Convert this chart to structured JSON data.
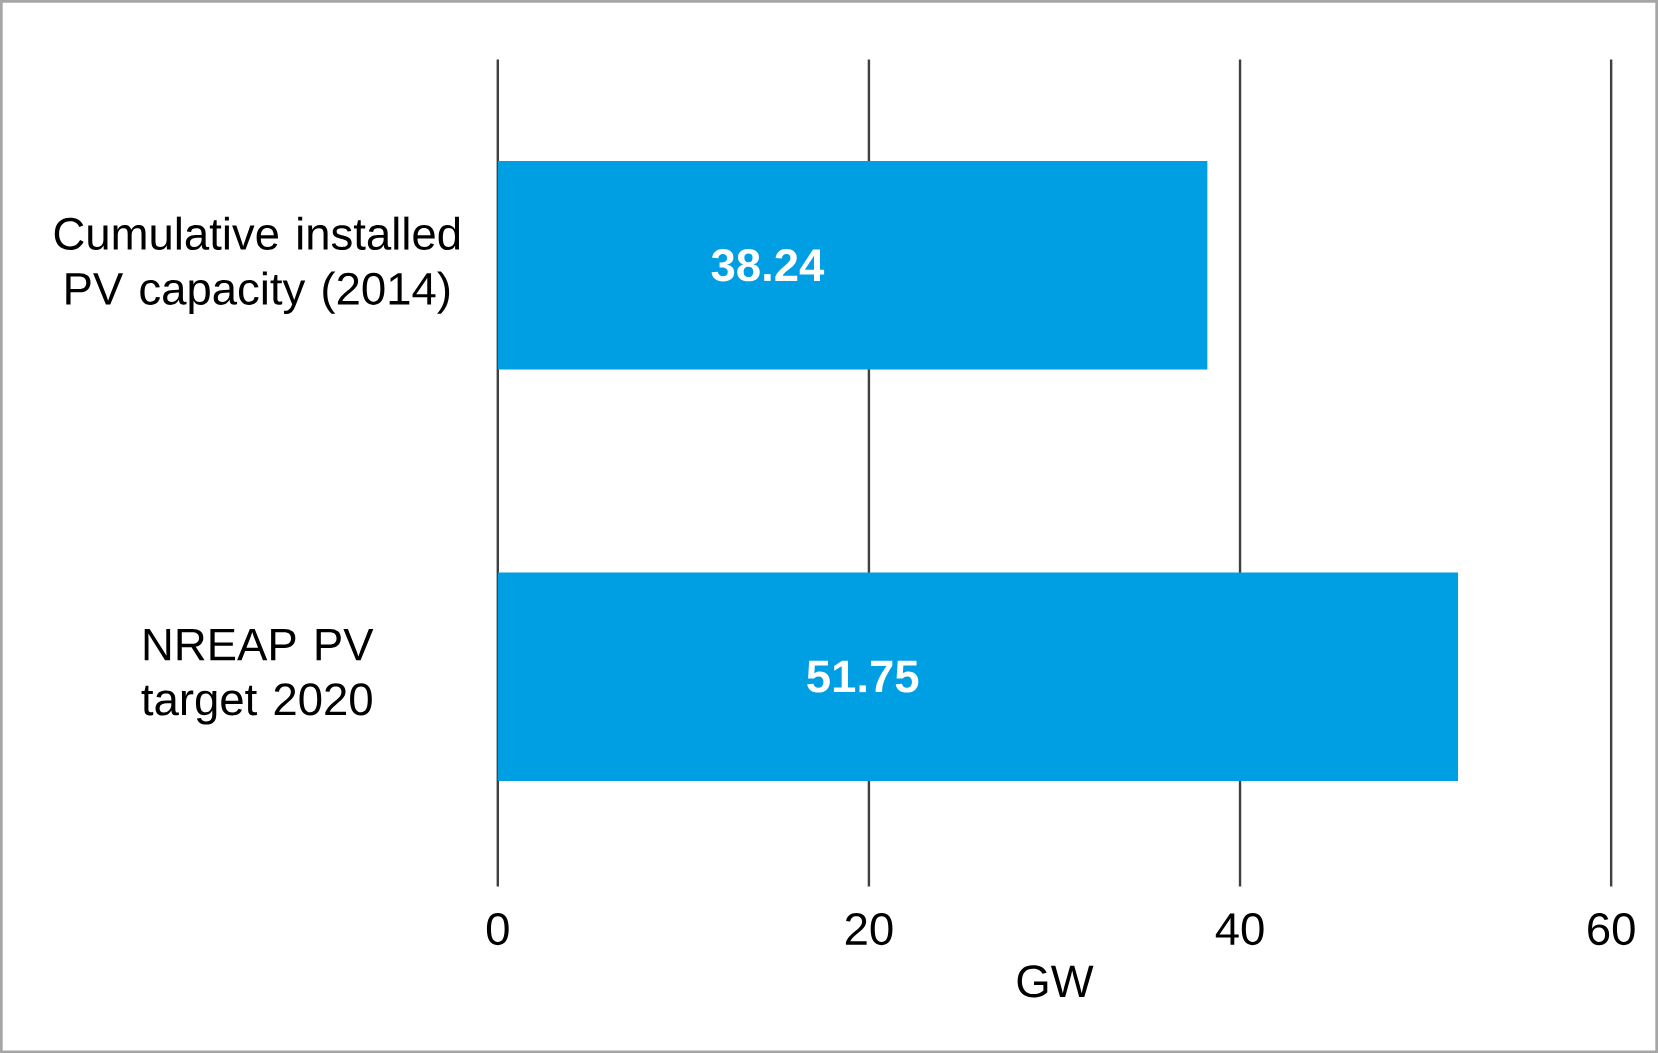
{
  "chart_data": {
    "type": "bar",
    "orientation": "horizontal",
    "categories": [
      "Cumulative installed PV capacity (2014)",
      "NREAP PV target 2020"
    ],
    "values": [
      38.24,
      51.75
    ],
    "color": "#009fe3",
    "xlim": [
      0,
      60
    ],
    "xticks": [
      0,
      20,
      40,
      60
    ],
    "xlabel": "GW",
    "grid": "x",
    "data_labels": true
  }
}
